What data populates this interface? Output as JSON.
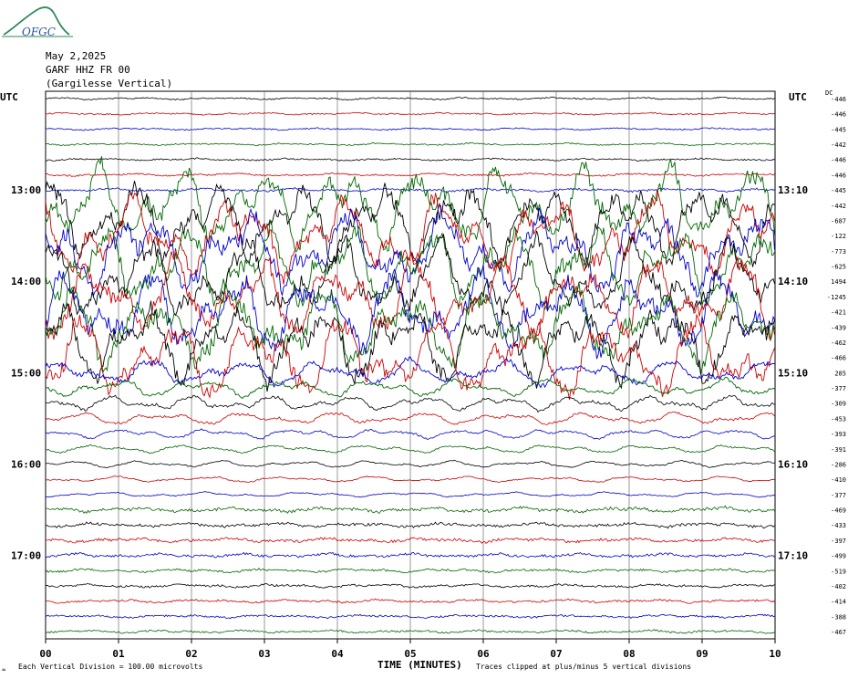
{
  "header": {
    "logo_text": "OFGC",
    "date": "May 2,2025",
    "station": "GARF HHZ FR 00",
    "station_name": "(Gargilesse Vertical)"
  },
  "labels": {
    "utc_left": "UTC",
    "utc_right": "UTC",
    "dc_header": "DC"
  },
  "footer": {
    "marker": "≈",
    "scale_note": "Each Vertical Division = 100.00 microvolts",
    "clip_note": "Traces clipped at plus/minus 5 vertical divisions"
  },
  "colors": {
    "trace_cycle": [
      "#000000",
      "#cc0000",
      "#0000cc",
      "#006600"
    ],
    "grid": "#555555"
  },
  "chart_data": {
    "type": "line",
    "title": "GARF HHZ FR 00",
    "xlabel": "TIME (MINUTES)",
    "ylabel": "UTC",
    "x_ticks": [
      "00",
      "01",
      "02",
      "03",
      "04",
      "05",
      "06",
      "07",
      "08",
      "09",
      "10"
    ],
    "xlim": [
      0,
      10
    ],
    "y_ticks_left": [
      {
        "label": "13:00",
        "row": 6
      },
      {
        "label": "14:00",
        "row": 12
      },
      {
        "label": "15:00",
        "row": 18
      },
      {
        "label": "16:00",
        "row": 24
      },
      {
        "label": "17:00",
        "row": 30
      }
    ],
    "y_ticks_right": [
      {
        "label": "13:10",
        "row": 6
      },
      {
        "label": "14:10",
        "row": 12
      },
      {
        "label": "15:10",
        "row": 18
      },
      {
        "label": "16:10",
        "row": 24
      },
      {
        "label": "17:10",
        "row": 30
      }
    ],
    "trace_count": 36,
    "dc_offsets": [
      -446,
      -446,
      -445,
      -442,
      -446,
      -446,
      -445,
      -442,
      -687,
      -122,
      -773,
      -625,
      1494,
      -1245,
      -421,
      -439,
      -462,
      -466,
      285,
      -377,
      -309,
      -453,
      -393,
      -391,
      -286,
      -410,
      -377,
      -469,
      -433,
      -397,
      -499,
      -519,
      -402,
      -414,
      -388,
      -467
    ],
    "relative_amplitude": [
      0.12,
      0.12,
      0.12,
      0.12,
      0.13,
      0.15,
      0.18,
      5.0,
      5.0,
      5.0,
      5.0,
      5.0,
      5.0,
      5.0,
      5.0,
      5.0,
      5.0,
      5.0,
      1.6,
      1.1,
      0.9,
      0.75,
      0.6,
      0.5,
      0.42,
      0.36,
      0.3,
      0.28,
      0.26,
      0.24,
      0.22,
      0.2,
      0.19,
      0.18,
      0.17,
      0.17
    ],
    "clip_divisions": 5
  }
}
